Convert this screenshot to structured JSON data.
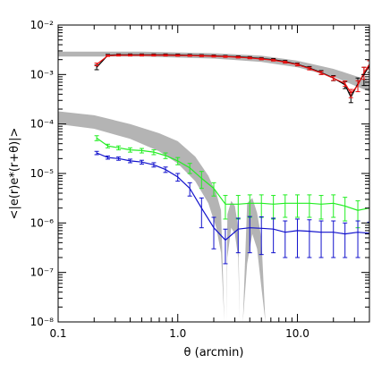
{
  "chart_data": {
    "type": "line",
    "xscale": "log",
    "yscale": "log",
    "xlim": [
      0.1,
      40
    ],
    "ylim": [
      1e-08,
      0.01
    ],
    "xlabel": "θ (arcmin)",
    "ylabel": "<|e(r)e*(r+θ)|>",
    "x_tick_labels": [
      "0.1",
      "1.0",
      "10.0"
    ],
    "y_tick_labels": [
      "10⁻⁸",
      "10⁻⁷",
      "10⁻⁶",
      "10⁻⁵",
      "10⁻⁴",
      "10⁻³",
      "10⁻²"
    ],
    "grid": false,
    "colors": {
      "red": "#ee1111",
      "black": "#000000",
      "green": "#22ee22",
      "blue": "#1111cc",
      "band": "#b4b4b4"
    },
    "bands": [
      {
        "lower": [
          [
            0.1,
            0.0023
          ],
          [
            0.5,
            0.0023
          ],
          [
            2,
            0.0021
          ],
          [
            5,
            0.0018
          ],
          [
            10,
            0.0014
          ],
          [
            20,
            0.0009
          ],
          [
            30,
            0.0006
          ],
          [
            40,
            0.00045
          ]
        ],
        "upper": [
          [
            0.1,
            0.0029
          ],
          [
            0.5,
            0.0029
          ],
          [
            2,
            0.0027
          ],
          [
            5,
            0.0024
          ],
          [
            10,
            0.0019
          ],
          [
            20,
            0.0013
          ],
          [
            30,
            0.00095
          ],
          [
            40,
            0.00075
          ]
        ]
      },
      {
        "lower": [
          [
            0.1,
            0.0001
          ],
          [
            0.2,
            8e-05
          ],
          [
            0.4,
            5e-05
          ],
          [
            0.7,
            2.8e-05
          ],
          [
            1.0,
            1.6e-05
          ],
          [
            1.4,
            7e-06
          ],
          [
            1.8,
            2.5e-06
          ],
          [
            2.1,
            8e-07
          ],
          [
            2.3,
            2.5e-07
          ],
          [
            2.45,
            1e-08
          ]
        ],
        "upper": [
          [
            0.1,
            0.00018
          ],
          [
            0.2,
            0.00015
          ],
          [
            0.4,
            0.0001
          ],
          [
            0.7,
            6.5e-05
          ],
          [
            1.0,
            4.5e-05
          ],
          [
            1.4,
            2.2e-05
          ],
          [
            1.8,
            9e-06
          ],
          [
            2.1,
            4e-06
          ],
          [
            2.3,
            1.8e-06
          ],
          [
            2.45,
            1e-08
          ]
        ]
      },
      {
        "lower": [
          [
            2.55,
            1e-08
          ],
          [
            2.6,
            2e-07
          ],
          [
            2.8,
            8e-07
          ],
          [
            3.0,
            6e-07
          ],
          [
            3.2,
            2e-07
          ],
          [
            3.3,
            1e-08
          ]
        ],
        "upper": [
          [
            2.55,
            1e-08
          ],
          [
            2.6,
            1.5e-06
          ],
          [
            2.8,
            2.8e-06
          ],
          [
            3.0,
            2.2e-06
          ],
          [
            3.2,
            8e-07
          ],
          [
            3.3,
            1e-08
          ]
        ]
      },
      {
        "lower": [
          [
            3.5,
            1e-08
          ],
          [
            3.8,
            1.5e-07
          ],
          [
            4.2,
            6e-07
          ],
          [
            4.6,
            3e-07
          ],
          [
            5.0,
            5e-08
          ],
          [
            5.4,
            1e-08
          ]
        ],
        "upper": [
          [
            3.5,
            1e-08
          ],
          [
            3.8,
            2.5e-06
          ],
          [
            4.2,
            3.2e-06
          ],
          [
            4.6,
            1.6e-06
          ],
          [
            5.0,
            5e-07
          ],
          [
            5.4,
            1e-08
          ]
        ]
      }
    ],
    "series": [
      {
        "color_key": "black",
        "x": [
          0.21,
          0.26,
          0.32,
          0.4,
          0.5,
          0.63,
          0.79,
          1.0,
          1.26,
          1.58,
          2.0,
          2.5,
          3.2,
          4.0,
          5.0,
          6.3,
          7.9,
          10,
          12.6,
          15.8,
          20,
          25,
          28,
          32,
          36,
          40
        ],
        "y": [
          0.0014,
          0.00245,
          0.0025,
          0.0025,
          0.0025,
          0.0025,
          0.0025,
          0.00248,
          0.00245,
          0.00242,
          0.00238,
          0.00233,
          0.00228,
          0.0022,
          0.0021,
          0.002,
          0.00182,
          0.0016,
          0.00135,
          0.0011,
          0.00085,
          0.00062,
          0.00035,
          0.00065,
          0.001,
          0.0015
        ],
        "err": [
          0.00015,
          0.0001,
          0.0001,
          0.0001,
          0.0001,
          0.0001,
          0.0001,
          0.0001,
          0.0001,
          0.0001,
          0.0001,
          0.0001,
          0.0001,
          0.0001,
          0.0001,
          0.0001,
          0.0001,
          0.0001,
          0.0001,
          0.0001,
          0.0001,
          0.0001,
          8e-05,
          0.0002,
          0.0004,
          0.0004
        ]
      },
      {
        "color_key": "red",
        "x": [
          0.21,
          0.26,
          0.32,
          0.4,
          0.5,
          0.63,
          0.79,
          1.0,
          1.26,
          1.58,
          2.0,
          2.5,
          3.2,
          4.0,
          5.0,
          6.3,
          7.9,
          10,
          12.6,
          15.8,
          20,
          25,
          28,
          32,
          36,
          40
        ],
        "y": [
          0.0016,
          0.0024,
          0.00245,
          0.00245,
          0.00245,
          0.00245,
          0.00245,
          0.00243,
          0.00241,
          0.00238,
          0.00234,
          0.0023,
          0.00224,
          0.00216,
          0.00206,
          0.00195,
          0.00178,
          0.00158,
          0.00132,
          0.00108,
          0.00084,
          0.00066,
          0.00042,
          0.0006,
          0.0011,
          0.0016
        ],
        "err": [
          0.0001,
          8e-05,
          8e-05,
          8e-05,
          8e-05,
          8e-05,
          8e-05,
          8e-05,
          8e-05,
          8e-05,
          8e-05,
          8e-05,
          8e-05,
          8e-05,
          8e-05,
          8e-05,
          8e-05,
          8e-05,
          8e-05,
          8e-05,
          8e-05,
          8e-05,
          8e-05,
          0.00015,
          0.0003,
          0.0003
        ]
      },
      {
        "color_key": "green",
        "x": [
          0.21,
          0.26,
          0.32,
          0.4,
          0.5,
          0.63,
          0.79,
          1.0,
          1.26,
          1.58,
          2.0,
          2.5,
          3.2,
          4.0,
          5.0,
          6.3,
          7.9,
          10,
          12.6,
          15.8,
          20,
          25,
          32,
          40
        ],
        "y": [
          5.2e-05,
          3.6e-05,
          3.3e-05,
          3e-05,
          2.9e-05,
          2.7e-05,
          2.3e-05,
          1.8e-05,
          1.3e-05,
          8e-06,
          5e-06,
          2.4e-06,
          2.4e-06,
          2.5e-06,
          2.5e-06,
          2.4e-06,
          2.5e-06,
          2.5e-06,
          2.5e-06,
          2.4e-06,
          2.5e-06,
          2.2e-06,
          1.8e-06,
          2e-06
        ],
        "err": [
          6e-06,
          3e-06,
          3e-06,
          3e-06,
          3e-06,
          3e-06,
          3e-06,
          3e-06,
          3e-06,
          3e-06,
          1.5e-06,
          1.2e-06,
          1.2e-06,
          1.2e-06,
          1.2e-06,
          1.2e-06,
          1.2e-06,
          1.2e-06,
          1.2e-06,
          1.2e-06,
          1.2e-06,
          1.1e-06,
          1e-06,
          1e-06
        ]
      },
      {
        "color_key": "blue",
        "x": [
          0.21,
          0.26,
          0.32,
          0.4,
          0.5,
          0.63,
          0.79,
          1.0,
          1.26,
          1.58,
          2.0,
          2.5,
          3.2,
          4.0,
          5.0,
          6.3,
          7.9,
          10,
          12.6,
          15.8,
          20,
          25,
          32,
          40
        ],
        "y": [
          2.6e-05,
          2.1e-05,
          2e-05,
          1.8e-05,
          1.7e-05,
          1.5e-05,
          1.2e-05,
          8.5e-06,
          5e-06,
          2e-06,
          8e-07,
          4.5e-07,
          7.5e-07,
          8e-07,
          7.8e-07,
          7.5e-07,
          6.5e-07,
          7e-07,
          6.8e-07,
          6.5e-07,
          6.5e-07,
          6e-07,
          6.5e-07,
          6.2e-07
        ],
        "err": [
          2e-06,
          1.5e-06,
          1.5e-06,
          1.5e-06,
          1.5e-06,
          1.5e-06,
          1.5e-06,
          1.5e-06,
          1.5e-06,
          1.2e-06,
          5e-07,
          3e-07,
          5e-07,
          5.5e-07,
          5.5e-07,
          5e-07,
          4.5e-07,
          5e-07,
          4.8e-07,
          4.5e-07,
          4.5e-07,
          4e-07,
          4.5e-07,
          4.2e-07
        ]
      }
    ]
  }
}
